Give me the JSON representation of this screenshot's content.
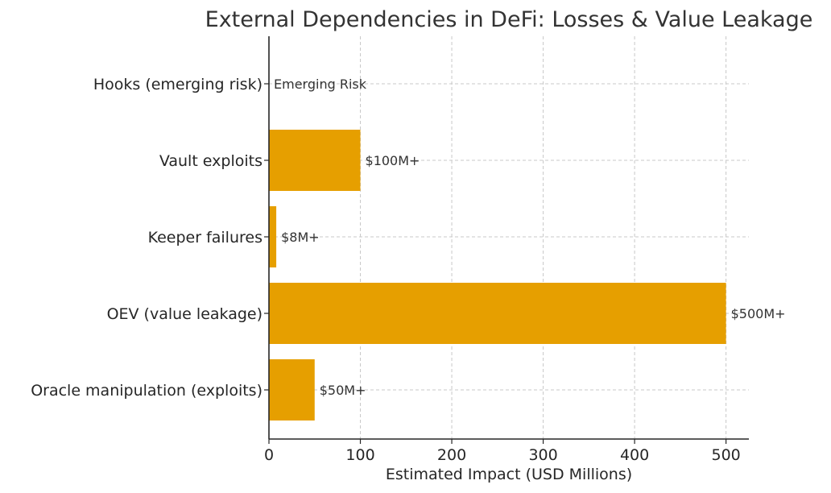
{
  "chart_data": {
    "type": "bar",
    "orientation": "horizontal",
    "title": "External Dependencies in DeFi: Losses & Value Leakage",
    "xlabel": "Estimated Impact (USD Millions)",
    "ylabel": "",
    "categories": [
      "Oracle manipulation (exploits)",
      "OEV (value leakage)",
      "Keeper failures",
      "Vault exploits",
      "Hooks (emerging risk)"
    ],
    "values": [
      50,
      500,
      8,
      100,
      0
    ],
    "data_labels": [
      "$50M+",
      "$500M+",
      "$8M+",
      "$100M+",
      "Emerging Risk"
    ],
    "xlim": [
      0,
      525
    ],
    "xticks": [
      0,
      100,
      200,
      300,
      400,
      500
    ],
    "bar_color": "#E69F00",
    "grid": true,
    "legend": "none"
  }
}
